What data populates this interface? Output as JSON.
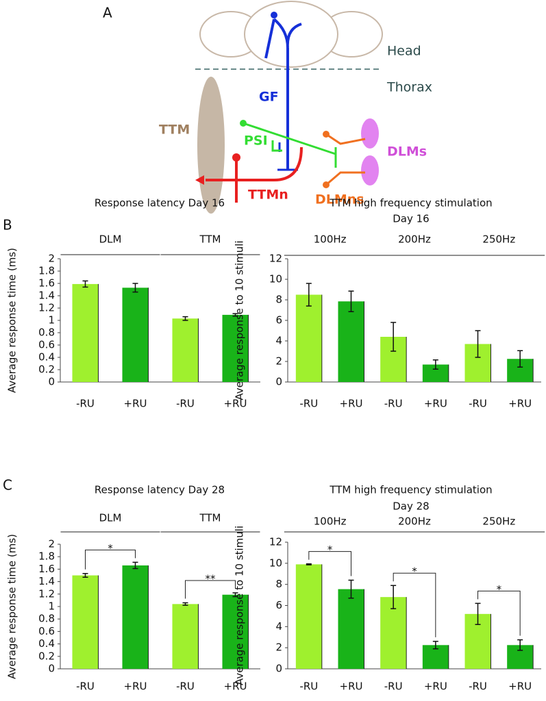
{
  "panel_labels": [
    "A",
    "B",
    "C"
  ],
  "diagram": {
    "head": "Head",
    "thorax": "Thorax",
    "gf": "GF",
    "ttm": "TTM",
    "psi": "PSI",
    "dlms": "DLMs",
    "ttmn": "TTMn",
    "dlmns": "DLMns"
  },
  "chart_data": [
    {
      "type": "bar",
      "title": "Response latency  Day 16",
      "ylabel": "Average response time (ms)",
      "colors": [
        "#9ff02e",
        "#19b319"
      ],
      "ylim": [
        0,
        2
      ],
      "yticks": [
        0,
        0.2,
        0.4,
        0.6,
        0.8,
        1,
        1.2,
        1.4,
        1.6,
        1.8,
        2
      ],
      "groups": [
        {
          "label": "DLM",
          "categories": [
            "-RU",
            "+RU"
          ],
          "values": [
            1.59,
            1.53
          ],
          "errors": [
            0.05,
            0.07
          ]
        },
        {
          "label": "TTM",
          "categories": [
            "-RU",
            "+RU"
          ],
          "values": [
            1.03,
            1.09
          ],
          "errors": [
            0.03,
            0.02
          ]
        }
      ]
    },
    {
      "type": "bar",
      "title": "TTM high frequency stimulation",
      "subtitle": "Day 16",
      "ylabel": "Average response to 10 stimuli",
      "colors": [
        "#9ff02e",
        "#19b319"
      ],
      "ylim": [
        0,
        12
      ],
      "yticks": [
        0,
        2,
        4,
        6,
        8,
        10,
        12
      ],
      "groups": [
        {
          "label": "100Hz",
          "categories": [
            "-RU",
            "+RU"
          ],
          "values": [
            8.5,
            7.85
          ],
          "errors": [
            1.1,
            1.0
          ]
        },
        {
          "label": "200Hz",
          "categories": [
            "-RU",
            "+RU"
          ],
          "values": [
            4.4,
            1.7
          ],
          "errors": [
            1.4,
            0.45
          ]
        },
        {
          "label": "250Hz",
          "categories": [
            "-RU",
            "+RU"
          ],
          "values": [
            3.7,
            2.25
          ],
          "errors": [
            1.3,
            0.8
          ]
        }
      ]
    },
    {
      "type": "bar",
      "title": "Response latency Day 28",
      "ylabel": "Average response time (ms)",
      "colors": [
        "#9ff02e",
        "#19b319"
      ],
      "ylim": [
        0,
        2
      ],
      "yticks": [
        0,
        0.2,
        0.4,
        0.6,
        0.8,
        1,
        1.2,
        1.4,
        1.6,
        1.8,
        2
      ],
      "groups": [
        {
          "label": "DLM",
          "categories": [
            "-RU",
            "+RU"
          ],
          "values": [
            1.5,
            1.66
          ],
          "errors": [
            0.03,
            0.05
          ],
          "significance": "*"
        },
        {
          "label": "TTM",
          "categories": [
            "-RU",
            "+RU"
          ],
          "values": [
            1.04,
            1.19
          ],
          "errors": [
            0.02,
            0.03
          ],
          "significance": "**"
        }
      ]
    },
    {
      "type": "bar",
      "title": "TTM high frequency stimulation",
      "subtitle": "Day 28",
      "ylabel": "Average response to 10 stimuli",
      "colors": [
        "#9ff02e",
        "#19b319"
      ],
      "ylim": [
        0,
        12
      ],
      "yticks": [
        0,
        2,
        4,
        6,
        8,
        10,
        12
      ],
      "groups": [
        {
          "label": "100Hz",
          "categories": [
            "-RU",
            "+RU"
          ],
          "values": [
            9.9,
            7.55
          ],
          "errors": [
            0.05,
            0.85
          ],
          "significance": "*"
        },
        {
          "label": "200Hz",
          "categories": [
            "-RU",
            "+RU"
          ],
          "values": [
            6.8,
            2.25
          ],
          "errors": [
            1.1,
            0.35
          ],
          "significance": "*"
        },
        {
          "label": "250Hz",
          "categories": [
            "-RU",
            "+RU"
          ],
          "values": [
            5.2,
            2.25
          ],
          "errors": [
            1.0,
            0.5
          ],
          "significance": "*"
        }
      ]
    }
  ]
}
